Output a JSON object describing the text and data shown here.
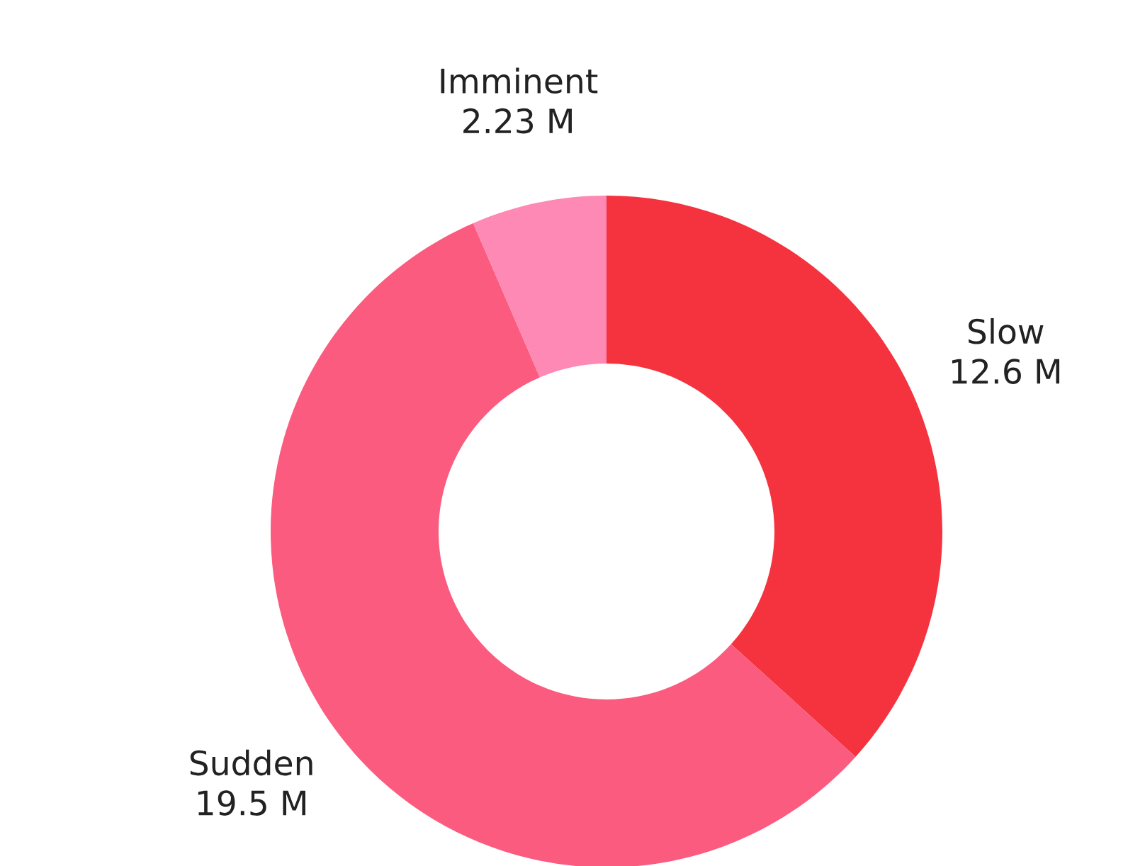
{
  "chart_data": {
    "type": "donut",
    "categories": [
      "Slow",
      "Sudden",
      "Imminent"
    ],
    "values": [
      12.6,
      19.5,
      2.23
    ],
    "value_labels": [
      "12.6 M",
      "19.5 M",
      "2.23 M"
    ],
    "colors": [
      "#f4333f",
      "#fb5b7e",
      "#fd89b4"
    ],
    "legend": false
  }
}
